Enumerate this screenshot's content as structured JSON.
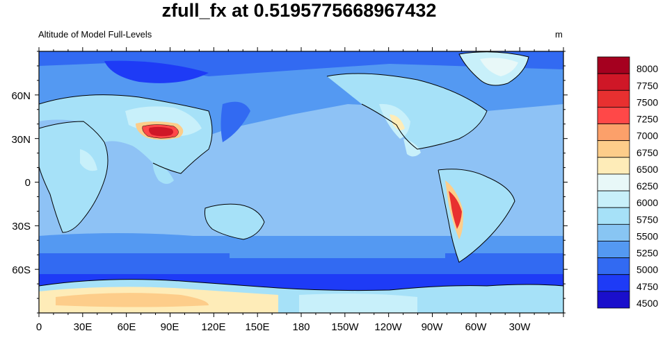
{
  "title": "zfull_fx at 0.5195775668967432",
  "subtitle_left": "Altitude of Model Full-Levels",
  "units": "m",
  "map": {
    "projection": "cylindrical-equidistant",
    "center_lon": 180,
    "ocean_base_color": "#8ec2f5",
    "lon_ticks": [
      "0",
      "30E",
      "60E",
      "90E",
      "120E",
      "150E",
      "180",
      "150W",
      "120W",
      "90W",
      "60W",
      "30W"
    ],
    "lat_ticks": [
      "60N",
      "30N",
      "0",
      "30S",
      "60S"
    ]
  },
  "colorbar": {
    "levels": [
      "8000",
      "7750",
      "7500",
      "7250",
      "7000",
      "6750",
      "6500",
      "6250",
      "6000",
      "5750",
      "5500",
      "5250",
      "5000",
      "4750",
      "4500"
    ],
    "colors": [
      "#a5001f",
      "#cf1727",
      "#e83030",
      "#ff4848",
      "#fca06a",
      "#fdcd8a",
      "#feecb8",
      "#e8f8f8",
      "#c8f0fa",
      "#a6e1f8",
      "#88c5f3",
      "#5499f2",
      "#326af2",
      "#1e3bf6",
      "#1a0fcc"
    ]
  }
}
